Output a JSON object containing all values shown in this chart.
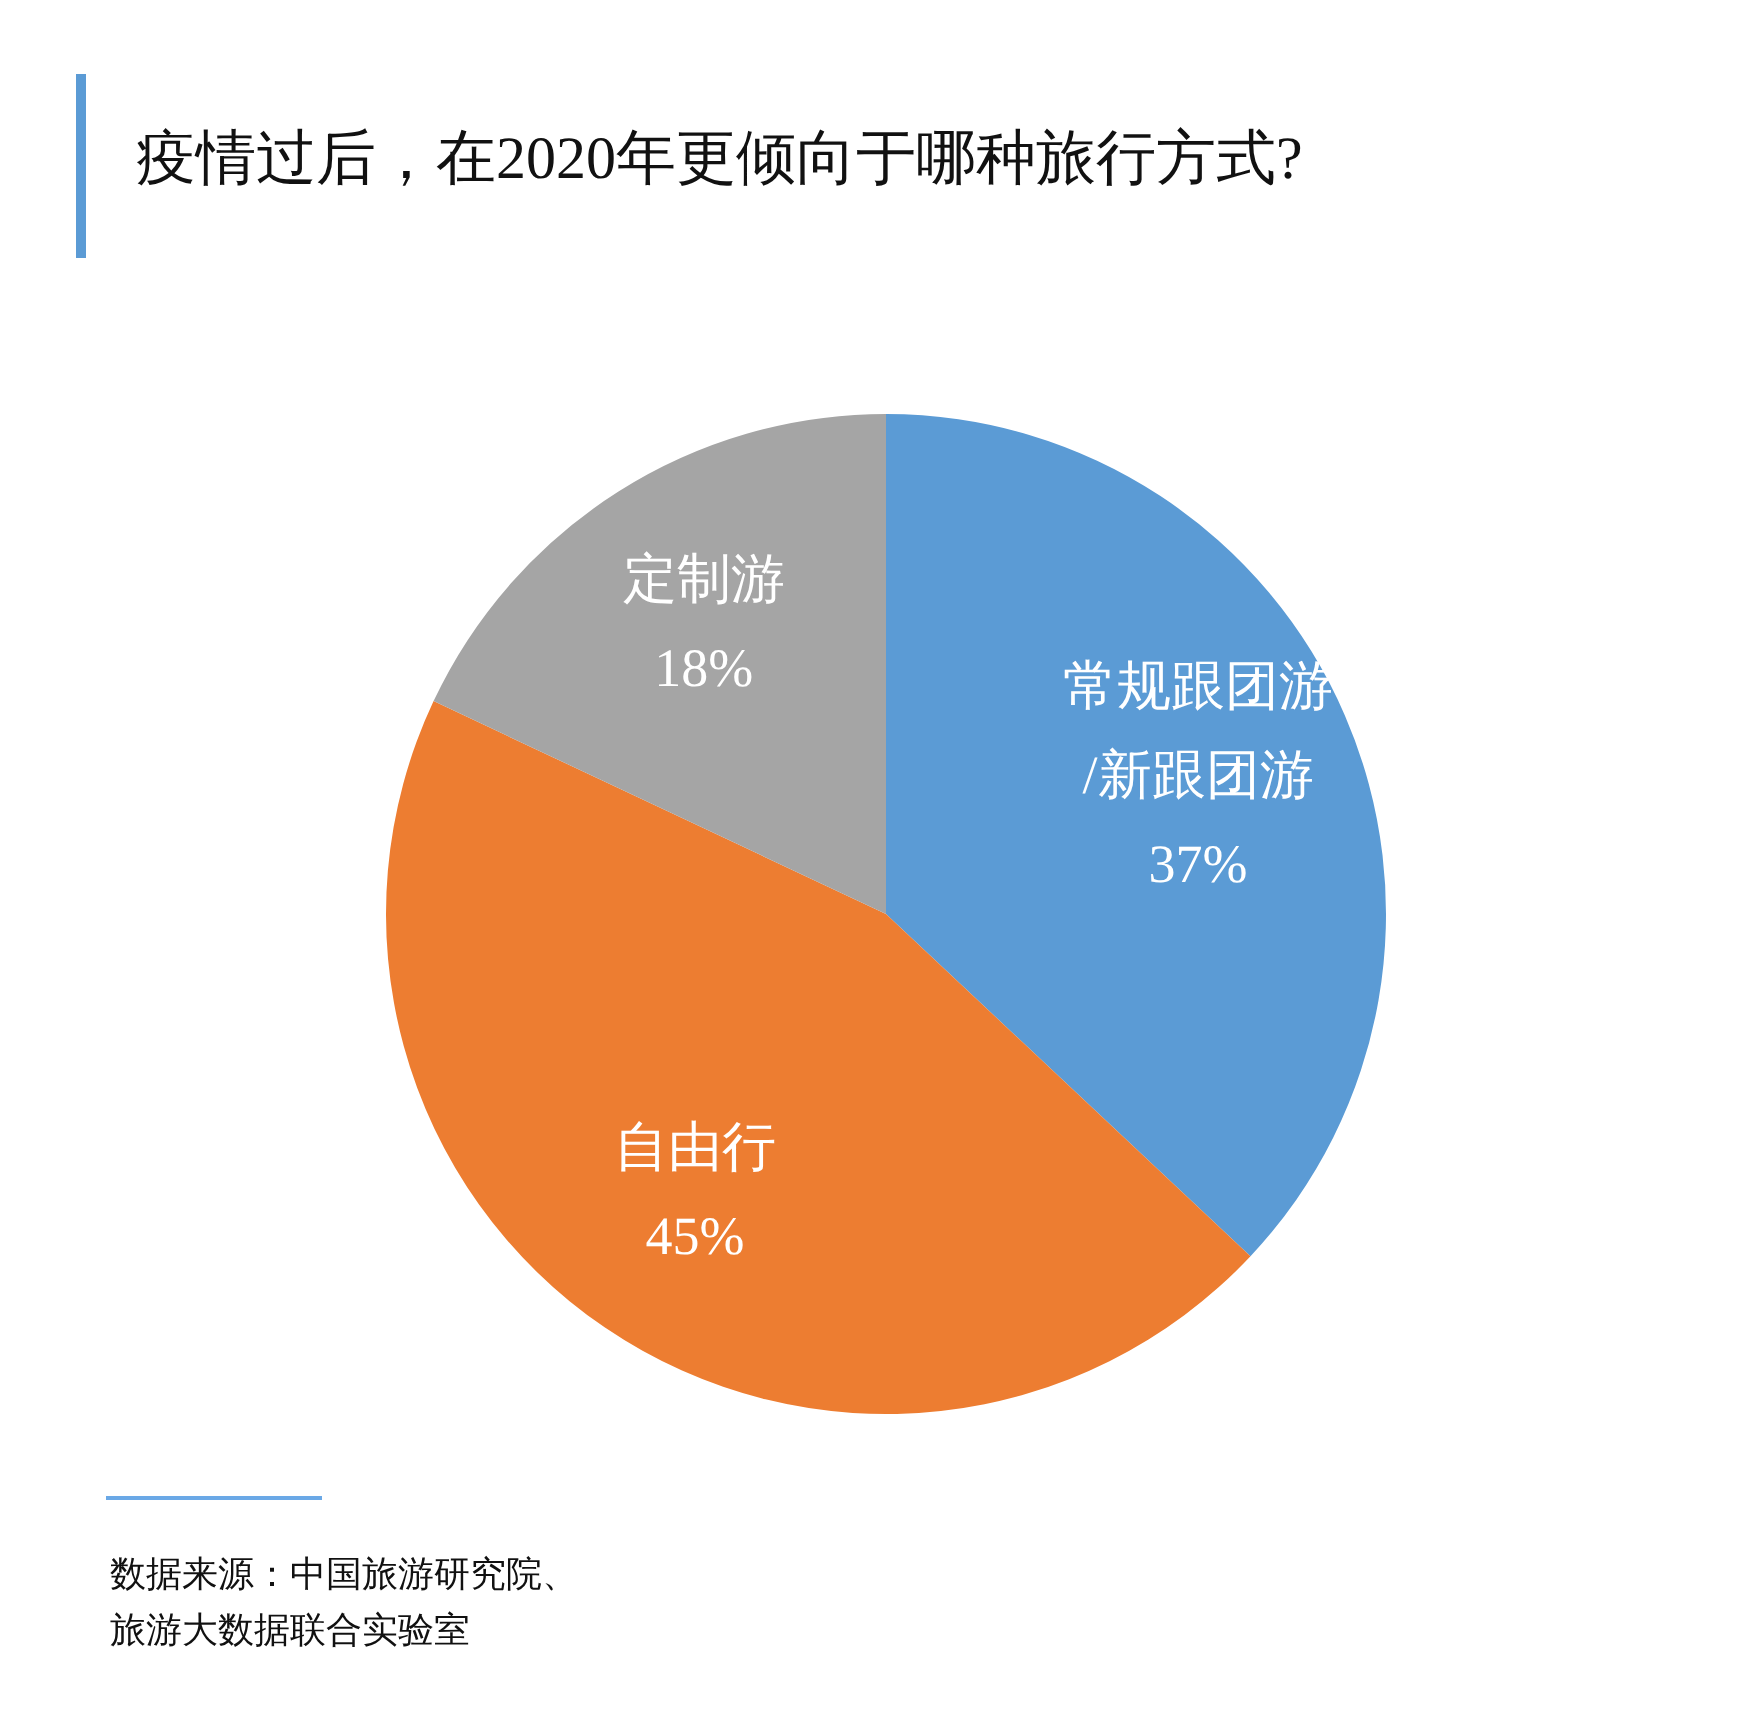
{
  "chart_data": {
    "type": "pie",
    "title": "疫情过后，在2020年更倾向于哪种旅行方式?",
    "categories": [
      "常规跟团游/新跟团游",
      "自由行",
      "定制游"
    ],
    "values": [
      37,
      45,
      18
    ],
    "value_labels": [
      "37%",
      "45%",
      "18%"
    ],
    "colors": [
      "#5b9bd5",
      "#ed7d31",
      "#a5a5a5"
    ],
    "annotations": [
      "数据来源：中国旅游研究院、旅游大数据联合实验室"
    ]
  }
}
